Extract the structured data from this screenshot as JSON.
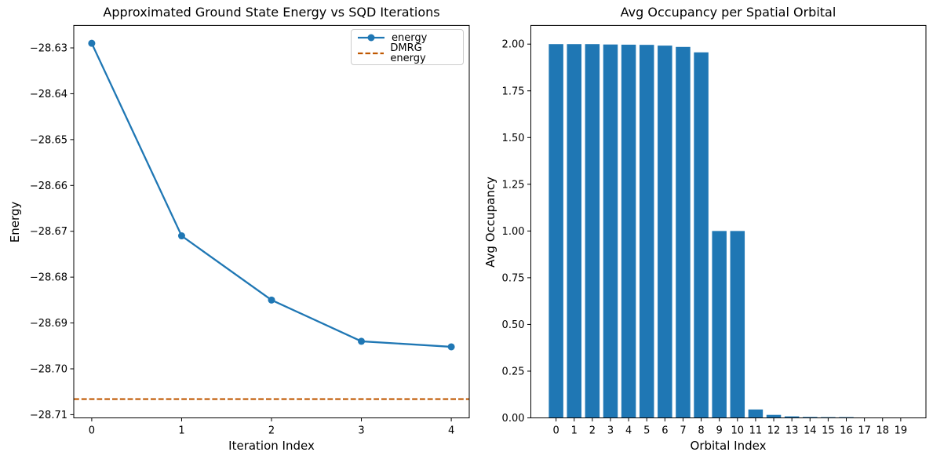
{
  "figure": {
    "background": "#ffffff",
    "accent_blue": "#1f77b4",
    "accent_orange": "#BF5700"
  },
  "chart_data": [
    {
      "type": "line",
      "title": "Approximated Ground State Energy vs SQD Iterations",
      "xlabel": "Iteration Index",
      "ylabel": "Energy",
      "x": [
        0,
        1,
        2,
        3,
        4
      ],
      "series": [
        {
          "name": "energy",
          "plot": "line+marker",
          "marker": "circle",
          "color": "#1f77b4",
          "values": [
            -28.629,
            -28.671,
            -28.685,
            -28.694,
            -28.6952
          ]
        },
        {
          "name": "DMRG energy",
          "plot": "hline",
          "linestyle": "dashed",
          "color": "#BF5700",
          "value": -28.7066
        }
      ],
      "xlim": [
        -0.2,
        4.2
      ],
      "ylim": [
        -28.7107,
        -28.6251
      ],
      "xticks": [
        0,
        1,
        2,
        3,
        4
      ],
      "xticklabels": [
        "0",
        "1",
        "2",
        "3",
        "4"
      ],
      "yticks": [
        -28.63,
        -28.64,
        -28.65,
        -28.66,
        -28.67,
        -28.68,
        -28.69,
        -28.7,
        -28.71
      ],
      "yticklabels": [
        "−28.63",
        "−28.64",
        "−28.65",
        "−28.66",
        "−28.67",
        "−28.68",
        "−28.69",
        "−28.70",
        "−28.71"
      ],
      "legend": {
        "location": "upper right",
        "entries": [
          "energy",
          "DMRG energy"
        ]
      },
      "grid": false
    },
    {
      "type": "bar",
      "title": "Avg Occupancy per Spatial Orbital",
      "xlabel": "Orbital Index",
      "ylabel": "Avg Occupancy",
      "categories": [
        "0",
        "1",
        "2",
        "3",
        "4",
        "5",
        "6",
        "7",
        "8",
        "9",
        "10",
        "11",
        "12",
        "13",
        "14",
        "15",
        "16",
        "17",
        "18",
        "19"
      ],
      "values": [
        2.0,
        2.0,
        2.0,
        1.998,
        1.997,
        1.996,
        1.992,
        1.985,
        1.956,
        1.0,
        1.0,
        0.045,
        0.016,
        0.008,
        0.005,
        0.004,
        0.004,
        0.0,
        0.0,
        0.0
      ],
      "bar_color": "#1f77b4",
      "bar_width": 0.8,
      "xlim": [
        -1.39,
        20.39
      ],
      "ylim": [
        0,
        2.1
      ],
      "yticks": [
        0,
        0.25,
        0.5,
        0.75,
        1.0,
        1.25,
        1.5,
        1.75,
        2.0
      ],
      "yticklabels": [
        "0.00",
        "0.25",
        "0.50",
        "0.75",
        "1.00",
        "1.25",
        "1.50",
        "1.75",
        "2.00"
      ],
      "grid": false
    }
  ]
}
